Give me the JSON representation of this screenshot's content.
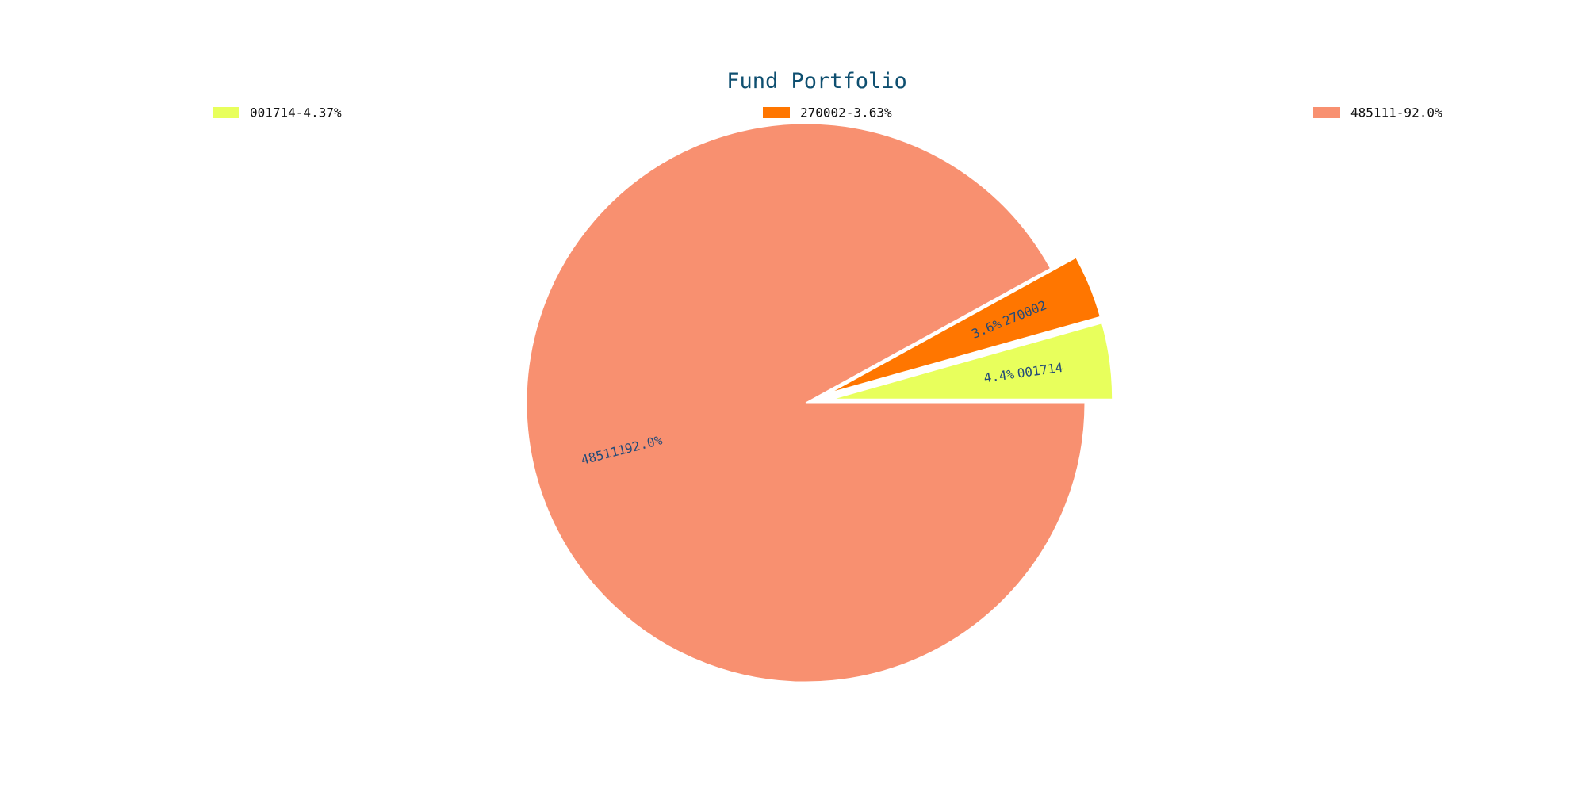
{
  "chart_data": {
    "type": "pie",
    "title": "Fund Portfolio",
    "slices": [
      {
        "name": "001714",
        "value": 4.37,
        "legend_label": "001714-4.37%",
        "pct_label": "4.4%",
        "color": "#e8ff5c",
        "exploded": true
      },
      {
        "name": "270002",
        "value": 3.63,
        "legend_label": "270002-3.63%",
        "pct_label": "3.6%",
        "color": "#ff7600",
        "exploded": true
      },
      {
        "name": "485111",
        "value": 92.0,
        "legend_label": "485111-92.0%",
        "pct_label": "92.0%",
        "color": "#f89070",
        "exploded": false
      }
    ],
    "start_angle_deg": 0,
    "direction": "counterclockwise",
    "legend_position": "top",
    "grid": false
  }
}
